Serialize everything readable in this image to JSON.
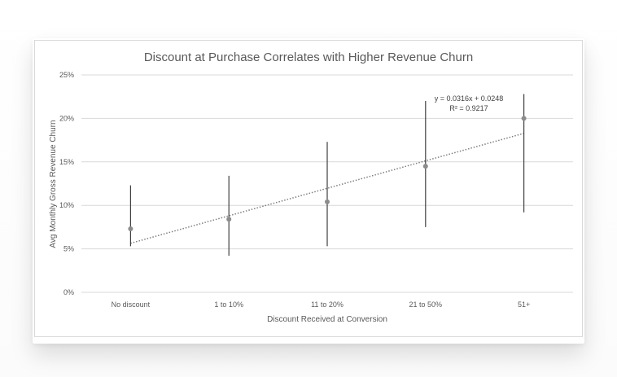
{
  "chart_data": {
    "type": "scatter",
    "title": "Discount at Purchase Correlates with Higher Revenue Churn",
    "xlabel": "Discount Received at Conversion",
    "ylabel": "Avg Monthly Gross Revenue Churn",
    "categories": [
      "No discount",
      "1 to 10%",
      "11 to 20%",
      "21 to 50%",
      "51+"
    ],
    "ylim": [
      0,
      0.25
    ],
    "yticks": [
      "0%",
      "5%",
      "10%",
      "15%",
      "20%",
      "25%"
    ],
    "ytick_values": [
      0,
      0.05,
      0.1,
      0.15,
      0.2,
      0.25
    ],
    "series": [
      {
        "values": [
          0.073,
          0.084,
          0.104,
          0.145,
          0.2
        ],
        "error_low": [
          0.053,
          0.042,
          0.053,
          0.075,
          0.092
        ],
        "error_high": [
          0.123,
          0.134,
          0.173,
          0.22,
          0.228
        ]
      }
    ],
    "trendline": {
      "type": "linear",
      "slope": 0.0316,
      "intercept": 0.0248,
      "equation": "y = 0.0316x + 0.0248",
      "r_squared": "R² = 0.9217"
    },
    "grid": true,
    "legend": "none",
    "colors": {
      "marker": "#8c8c8c",
      "error_bar": "#404040",
      "trendline": "#7f7f7f",
      "grid": "#d9d9d9",
      "text": "#595959"
    }
  }
}
